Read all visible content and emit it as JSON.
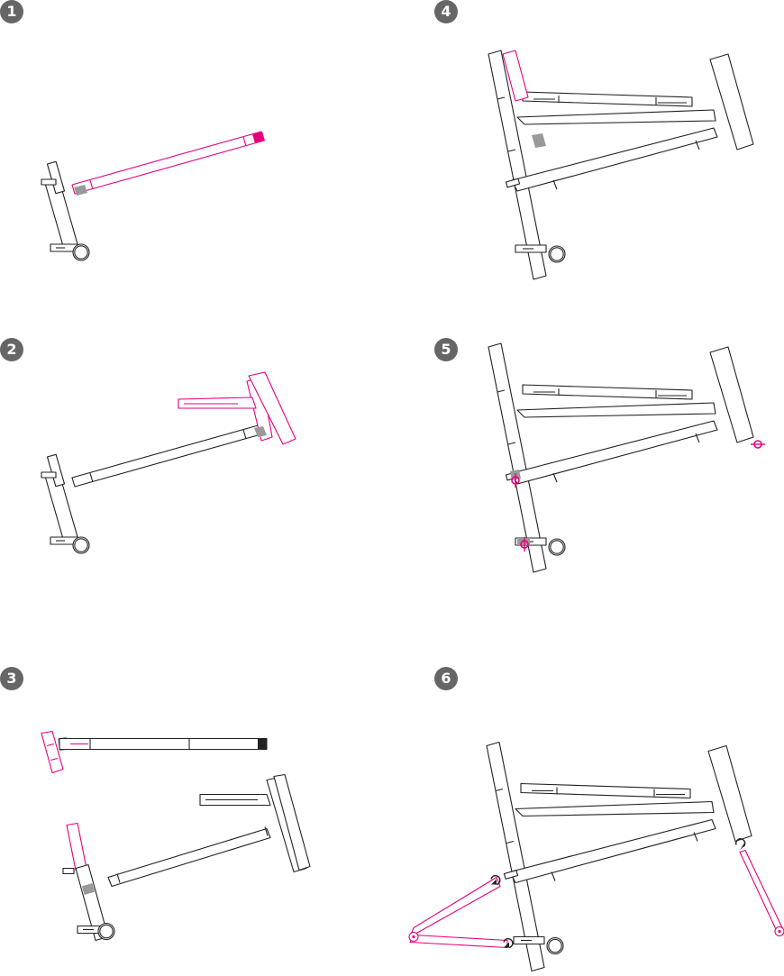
{
  "steps": [
    {
      "number": "1"
    },
    {
      "number": "2"
    },
    {
      "number": "3"
    },
    {
      "number": "4"
    },
    {
      "number": "5"
    },
    {
      "number": "6"
    }
  ],
  "colors": {
    "outline": "#222222",
    "highlight": "#e6007e",
    "joint": "#999999",
    "badge": "#666666"
  },
  "icons": [
    "rotate-arrow-icon",
    "hinge-icon"
  ]
}
